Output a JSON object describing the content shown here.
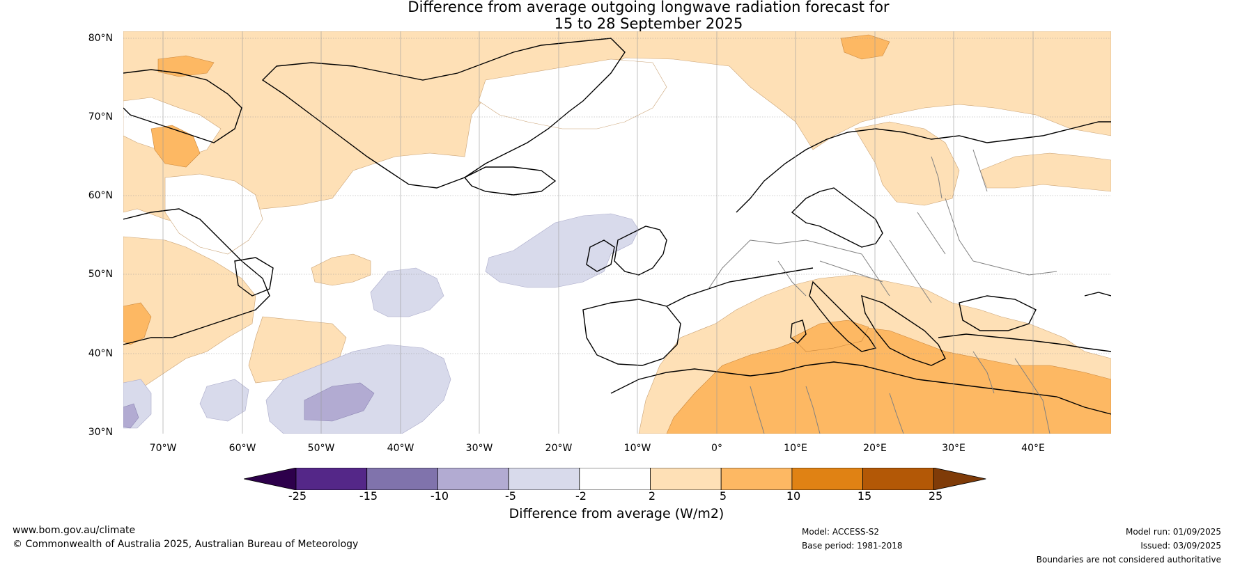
{
  "title": {
    "line1": "Difference from average outgoing longwave radiation forecast for",
    "line2": "15 to 28 September 2025"
  },
  "axes": {
    "lat_labels": [
      "80°N",
      "70°N",
      "60°N",
      "50°N",
      "40°N",
      "30°N"
    ],
    "lon_labels": [
      "70°W",
      "60°W",
      "50°W",
      "40°W",
      "30°W",
      "20°W",
      "10°W",
      "0°",
      "10°E",
      "20°E",
      "30°E",
      "40°E"
    ],
    "lat_range": [
      30,
      81
    ],
    "lon_range": [
      -75,
      50
    ]
  },
  "colorbar": {
    "title": "Difference from average (W/m2)",
    "tick_labels": [
      "-25",
      "-15",
      "-10",
      "-5",
      "-2",
      "2",
      "5",
      "10",
      "15",
      "25"
    ],
    "colors": [
      "#2d004b",
      "#542788",
      "#8073ac",
      "#b2abd2",
      "#d8daeb",
      "#ffffff",
      "#fee0b6",
      "#fdb863",
      "#e08214",
      "#b35806",
      "#7f3b08"
    ]
  },
  "footer": {
    "website": "www.bom.gov.au/climate",
    "copyright": "© Commonwealth of Australia 2025, Australian Bureau of Meteorology",
    "model": "Model: ACCESS-S2",
    "base_period": "Base period: 1981-2018",
    "model_run": "Model run: 01/09/2025",
    "issued": "Issued: 03/09/2025",
    "disclaimer": "Boundaries are not considered authoritative"
  },
  "map_colors": {
    "ocean_neutral": "#ffffff",
    "light_orange": "#fee0b6",
    "mid_orange": "#fdb863",
    "light_purple": "#d8daeb",
    "mid_purple": "#b2abd2",
    "coastline": "#000000",
    "borders": "#808080"
  }
}
